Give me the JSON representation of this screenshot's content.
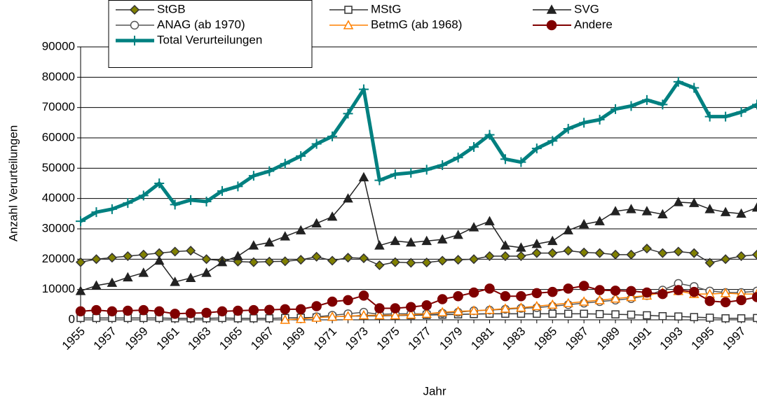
{
  "chart_data": {
    "type": "line",
    "x_label": "Jahr",
    "y_label": "Anzahl Verurteilungen",
    "categories": [
      "1955",
      null,
      "1957",
      null,
      "1959",
      null,
      "1961",
      null,
      "1963",
      null,
      "1965",
      null,
      "1967",
      null,
      "1969",
      null,
      "1971",
      null,
      "1973",
      null,
      "1975",
      null,
      "1977",
      null,
      "1979",
      null,
      "1981",
      null,
      "1983",
      null,
      "1985",
      null,
      "1987",
      null,
      "1989",
      null,
      "1991",
      null,
      "1993",
      null,
      "1995",
      null,
      "1997",
      null
    ],
    "ylim": [
      0,
      90000
    ],
    "yticks": [
      0,
      10000,
      20000,
      30000,
      40000,
      50000,
      60000,
      70000,
      80000,
      90000
    ],
    "grid": true,
    "series": [
      {
        "name": "StGB",
        "color": "#333333",
        "marker": "diamond",
        "marker_color": "#808000",
        "width": 1.5,
        "values": [
          19000,
          20000,
          20500,
          21000,
          21500,
          22000,
          22500,
          22800,
          20000,
          19500,
          19200,
          19000,
          19200,
          19300,
          19800,
          20800,
          19500,
          20500,
          20300,
          18000,
          19000,
          18800,
          18900,
          19500,
          19800,
          20000,
          21000,
          21000,
          21000,
          22000,
          22000,
          22800,
          22200,
          22000,
          21500,
          21500,
          23500,
          22000,
          22500,
          22000,
          18800,
          20000,
          21000,
          21500
        ]
      },
      {
        "name": "MStG",
        "color": "#333333",
        "marker": "square",
        "marker_color": "#ffffff",
        "width": 1.5,
        "values": [
          600,
          600,
          600,
          600,
          600,
          600,
          500,
          500,
          500,
          600,
          500,
          500,
          500,
          600,
          700,
          800,
          1000,
          1200,
          1300,
          1300,
          1400,
          1500,
          1600,
          1700,
          1800,
          1900,
          2000,
          2000,
          2000,
          2000,
          2000,
          2000,
          2000,
          1900,
          1800,
          1700,
          1500,
          1200,
          1100,
          900,
          700,
          500,
          500,
          600
        ]
      },
      {
        "name": "SVG",
        "color": "#222222",
        "marker": "triangle",
        "marker_color": "#222222",
        "width": 1.5,
        "values": [
          9500,
          11300,
          12200,
          14000,
          15500,
          19500,
          12500,
          13800,
          15500,
          19000,
          21000,
          24500,
          25500,
          27500,
          29500,
          31800,
          34000,
          40000,
          47000,
          24500,
          26000,
          25500,
          26000,
          26500,
          28000,
          30500,
          32500,
          24500,
          23800,
          25000,
          26000,
          29500,
          31500,
          32500,
          35800,
          36500,
          35800,
          34800,
          38800,
          38500,
          36500,
          35500,
          35000,
          37000
        ]
      },
      {
        "name": "ANAG (ab 1970)",
        "color": "#555555",
        "marker": "circle",
        "marker_color": "#ffffff",
        "width": 1.5,
        "values": [
          null,
          null,
          null,
          null,
          null,
          null,
          null,
          null,
          null,
          null,
          null,
          null,
          null,
          null,
          null,
          1000,
          1500,
          2000,
          2500,
          1800,
          2000,
          2000,
          2000,
          2200,
          2500,
          3000,
          3200,
          3500,
          3800,
          4000,
          4500,
          5000,
          5500,
          6000,
          6500,
          7000,
          8000,
          9800,
          12000,
          11000,
          9500,
          9000,
          9000,
          9500
        ]
      },
      {
        "name": "BetmG (ab 1968)",
        "color": "#ff8000",
        "marker": "triangle",
        "marker_color": "#ffffff",
        "width": 1.5,
        "values": [
          null,
          null,
          null,
          null,
          null,
          null,
          null,
          null,
          null,
          null,
          null,
          null,
          null,
          0,
          300,
          700,
          1000,
          1200,
          1500,
          1500,
          1500,
          1700,
          2000,
          2500,
          2800,
          3000,
          3300,
          3700,
          4000,
          4500,
          5000,
          5500,
          6000,
          6500,
          7000,
          7500,
          8000,
          9000,
          9500,
          8500,
          8500,
          8800,
          8500,
          8500
        ]
      },
      {
        "name": "Andere",
        "color": "#800000",
        "marker": "dot",
        "marker_color": "#800000",
        "width": 2,
        "values": [
          2800,
          3200,
          2800,
          3000,
          3200,
          2800,
          2000,
          2200,
          2300,
          2800,
          3000,
          3200,
          3300,
          3500,
          3500,
          4500,
          6000,
          6500,
          8000,
          3800,
          3800,
          4200,
          4800,
          6800,
          7800,
          9000,
          10300,
          7800,
          7800,
          8800,
          9200,
          10300,
          11200,
          9800,
          9600,
          9500,
          9000,
          8500,
          9800,
          9200,
          6200,
          5800,
          6500,
          7500
        ]
      },
      {
        "name": "Total Verurteilungen",
        "color": "#008080",
        "marker": "plus",
        "marker_color": "#008080",
        "width": 5,
        "values": [
          32500,
          35500,
          36500,
          38500,
          41000,
          45000,
          38000,
          39500,
          39000,
          42500,
          44000,
          47500,
          49000,
          51500,
          54000,
          58000,
          60500,
          68000,
          76000,
          46000,
          48000,
          48500,
          49500,
          51000,
          53500,
          57000,
          61000,
          53000,
          52000,
          56500,
          59000,
          63000,
          65000,
          66000,
          69500,
          70500,
          72500,
          71000,
          78500,
          76500,
          67000,
          67000,
          68500,
          71000
        ]
      }
    ]
  }
}
